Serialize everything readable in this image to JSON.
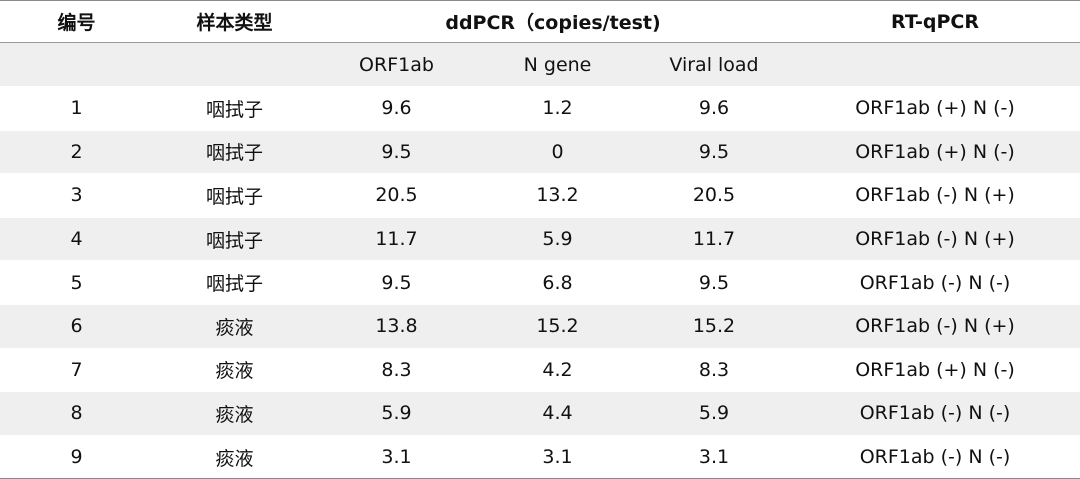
{
  "header": {
    "col_id": "编号",
    "col_type": "样本类型",
    "col_ddpcr": "ddPCR（copies/test)",
    "col_rtqpcr": "RT-qPCR"
  },
  "subheader": {
    "orf1ab": "ORF1ab",
    "n_gene": "N gene",
    "viral_load": "Viral load"
  },
  "rows": [
    {
      "id": "1",
      "type": "咽拭子",
      "orf1ab": "9.6",
      "ngene": "1.2",
      "viral": "9.6",
      "rtqpcr": "ORF1ab (+) N (-)"
    },
    {
      "id": "2",
      "type": "咽拭子",
      "orf1ab": "9.5",
      "ngene": "0",
      "viral": "9.5",
      "rtqpcr": "ORF1ab (+) N (-)"
    },
    {
      "id": "3",
      "type": "咽拭子",
      "orf1ab": "20.5",
      "ngene": "13.2",
      "viral": "20.5",
      "rtqpcr": "ORF1ab (-) N (+)"
    },
    {
      "id": "4",
      "type": "咽拭子",
      "orf1ab": "11.7",
      "ngene": "5.9",
      "viral": "11.7",
      "rtqpcr": "ORF1ab (-) N (+)"
    },
    {
      "id": "5",
      "type": "咽拭子",
      "orf1ab": "9.5",
      "ngene": "6.8",
      "viral": "9.5",
      "rtqpcr": "ORF1ab (-) N (-)"
    },
    {
      "id": "6",
      "type": "痰液",
      "orf1ab": "13.8",
      "ngene": "15.2",
      "viral": "15.2",
      "rtqpcr": "ORF1ab (-) N (+)"
    },
    {
      "id": "7",
      "type": "痰液",
      "orf1ab": "8.3",
      "ngene": "4.2",
      "viral": "8.3",
      "rtqpcr": "ORF1ab (+) N (-)"
    },
    {
      "id": "8",
      "type": "痰液",
      "orf1ab": "5.9",
      "ngene": "4.4",
      "viral": "5.9",
      "rtqpcr": "ORF1ab (-) N (-)"
    },
    {
      "id": "9",
      "type": "痰液",
      "orf1ab": "3.1",
      "ngene": "3.1",
      "viral": "3.1",
      "rtqpcr": "ORF1ab (-) N (-)"
    }
  ]
}
